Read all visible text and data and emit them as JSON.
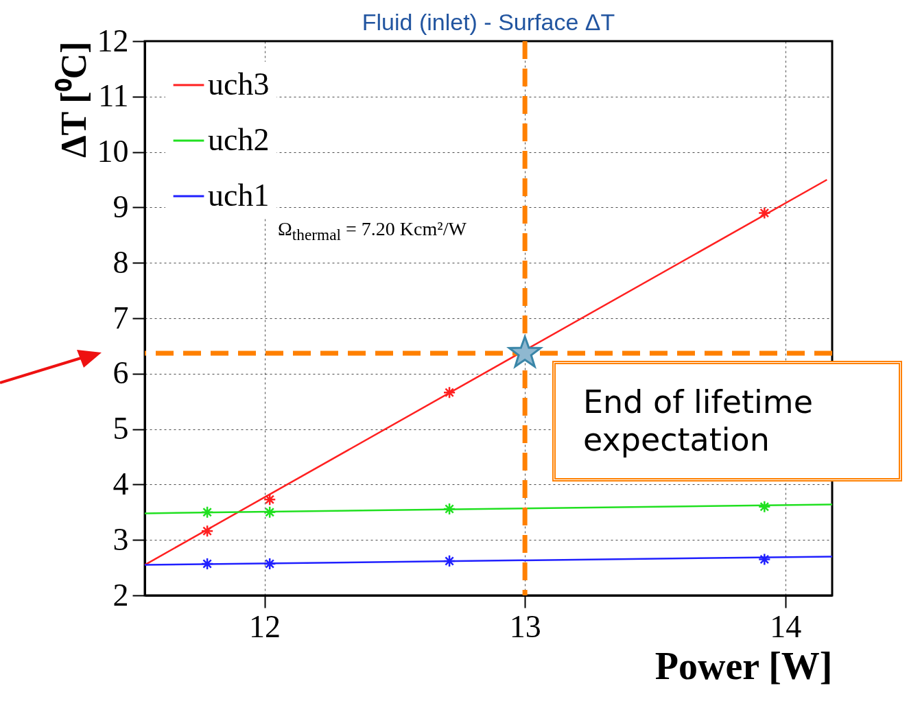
{
  "chart_data": {
    "type": "line",
    "title": "Fluid (inlet) - Surface ΔT",
    "xlabel": "Power [W]",
    "ylabel": "ΔT [⁰C]",
    "xlim": [
      11.54,
      14.18
    ],
    "ylim": [
      2,
      12
    ],
    "xticks": [
      12,
      13,
      14
    ],
    "yticks": [
      2,
      3,
      4,
      5,
      6,
      7,
      8,
      9,
      10,
      11,
      12
    ],
    "grid": true,
    "legend": "top left",
    "series": [
      {
        "name": "uch3",
        "color": "#ff2020",
        "x": [
          11.54,
          14.16
        ],
        "values": [
          2.55,
          9.5
        ]
      },
      {
        "name": "uch2",
        "color": "#20e020",
        "x": [
          11.54,
          14.18
        ],
        "values": [
          3.48,
          3.64
        ]
      },
      {
        "name": "uch1",
        "color": "#2020ff",
        "x": [
          11.54,
          14.18
        ],
        "values": [
          2.55,
          2.7
        ]
      },
      {
        "type": "scatter",
        "marker": "cross",
        "color": "#ff2020",
        "x": [
          11.78,
          12.02,
          12.71,
          13.92
        ],
        "values": [
          3.16,
          3.73,
          5.66,
          8.9
        ]
      },
      {
        "type": "scatter",
        "marker": "cross",
        "color": "#20e020",
        "x": [
          11.78,
          12.02,
          12.71,
          13.92
        ],
        "values": [
          3.5,
          3.5,
          3.56,
          3.6
        ]
      },
      {
        "type": "scatter",
        "marker": "cross",
        "color": "#2020ff",
        "x": [
          11.78,
          12.02,
          12.71,
          13.92
        ],
        "values": [
          2.57,
          2.57,
          2.62,
          2.65
        ]
      },
      {
        "type": "scatter",
        "marker": "star",
        "color": "#8fb8d0",
        "x": [
          13
        ],
        "values": [
          6.37
        ]
      }
    ],
    "ref_lines": [
      {
        "axis": "x",
        "value": 13,
        "color": "#ff8000",
        "line_style": "dashed"
      },
      {
        "axis": "y",
        "value": 6.37,
        "color": "#ff8000",
        "line_style": "dashed"
      }
    ],
    "annotations": [
      "End of lifetime expectation",
      "Ω$_{thermal}$ = 7.20 Kcm²/W"
    ]
  }
}
